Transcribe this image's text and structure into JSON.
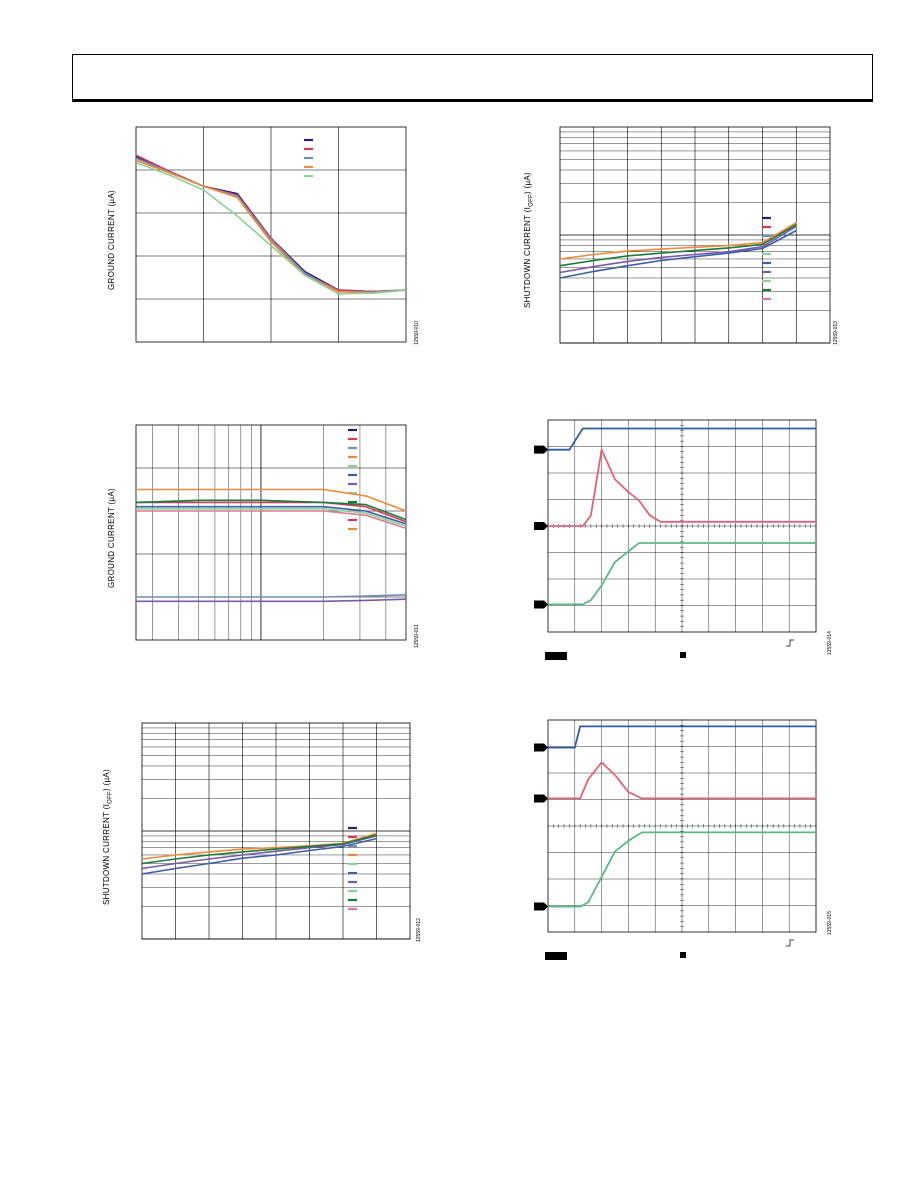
{
  "page": {
    "figures": [
      {
        "id": "fig10",
        "ylabel": "GROUND CURRENT (µA)",
        "figure_id": "12559-010"
      },
      {
        "id": "fig11",
        "ylabel": "GROUND CURRENT (µA)",
        "figure_id": "12559-011"
      },
      {
        "id": "fig12",
        "ylabel": "SHUTDOWN CURRENT (I",
        "ylabel_sub": "OFF",
        "ylabel_end": ") (µA)",
        "figure_id": "12559-012"
      },
      {
        "id": "fig13",
        "ylabel": "SHUTDOWN CURRENT (I",
        "ylabel_sub": "OFF",
        "ylabel_end": ") (µA)",
        "figure_id": "12559-013"
      },
      {
        "id": "fig14",
        "figure_id": "12559-014"
      },
      {
        "id": "fig15",
        "figure_id": "12559-015"
      }
    ]
  },
  "colors": {
    "navy": "#2d1b6b",
    "red": "#d43a5a",
    "steel": "#6f8fb4",
    "orange": "#f08a3c",
    "ltgreen": "#8fcf9a",
    "blue": "#3b5fa8",
    "purple": "#7a5ba8",
    "green": "#1e7a3a",
    "pink": "#e07a90",
    "scope_blue": "#2f5ea8",
    "scope_pink": "#e0637d",
    "scope_green": "#5bb888"
  },
  "chart_data": [
    {
      "id": "fig10",
      "type": "line",
      "ylabel": "GROUND CURRENT (µA)",
      "grid": true,
      "legend_placement": "top-right",
      "x": [
        0,
        0.5,
        1,
        1.5,
        2,
        2.5,
        3,
        3.5,
        4
      ],
      "series": [
        {
          "color": "navy",
          "values": [
            3.0,
            2.8,
            2.6,
            2.5,
            1.9,
            1.45,
            1.2,
            1.18,
            1.2
          ]
        },
        {
          "color": "red",
          "values": [
            3.02,
            2.8,
            2.6,
            2.48,
            1.9,
            1.42,
            1.2,
            1.18,
            1.2
          ]
        },
        {
          "color": "steel",
          "values": [
            2.98,
            2.79,
            2.6,
            2.47,
            1.88,
            1.43,
            1.18,
            1.17,
            1.2
          ]
        },
        {
          "color": "orange",
          "values": [
            2.95,
            2.78,
            2.6,
            2.45,
            1.85,
            1.4,
            1.18,
            1.16,
            1.2
          ]
        },
        {
          "color": "ltgreen",
          "values": [
            2.92,
            2.75,
            2.55,
            2.2,
            1.8,
            1.4,
            1.15,
            1.16,
            1.2
          ]
        }
      ]
    },
    {
      "id": "fig11",
      "type": "line",
      "ylabel": "GROUND CURRENT (µA)",
      "grid": true,
      "x_scale": "log",
      "legend_placement": "top-right",
      "x": [
        0.25,
        0.5,
        1,
        2,
        3.2,
        5
      ],
      "series": [
        {
          "color": "orange",
          "values": [
            3.5,
            3.5,
            3.5,
            3.5,
            3.35,
            3.0
          ]
        },
        {
          "color": "red",
          "values": [
            3.2,
            3.2,
            3.2,
            3.2,
            3.1,
            2.75
          ]
        },
        {
          "color": "green",
          "values": [
            3.2,
            3.25,
            3.25,
            3.2,
            3.15,
            2.8
          ]
        },
        {
          "color": "blue",
          "values": [
            3.1,
            3.1,
            3.1,
            3.1,
            3.0,
            2.7
          ]
        },
        {
          "color": "ltgreen",
          "values": [
            3.05,
            3.05,
            3.05,
            3.05,
            2.95,
            2.65
          ]
        },
        {
          "color": "pink",
          "values": [
            3.0,
            3.0,
            3.0,
            3.0,
            2.9,
            2.6
          ]
        },
        {
          "color": "steel",
          "values": [
            1.0,
            1.0,
            1.0,
            1.0,
            1.02,
            1.05
          ]
        },
        {
          "color": "purple",
          "values": [
            0.9,
            0.9,
            0.9,
            0.9,
            0.92,
            0.95
          ]
        }
      ]
    },
    {
      "id": "fig12",
      "type": "line",
      "ylabel": "SHUTDOWN CURRENT (IOFF) (µA)",
      "grid": true,
      "y_scale": "log",
      "legend_placement": "bottom-right",
      "x": [
        0,
        0.5,
        1,
        1.5,
        2,
        2.5,
        3,
        3.5
      ],
      "series": [
        {
          "color": "blue",
          "values": [
            0.004,
            0.0045,
            0.005,
            0.0056,
            0.006,
            0.0066,
            0.0072,
            0.0085
          ]
        },
        {
          "color": "orange",
          "values": [
            0.0055,
            0.006,
            0.0064,
            0.0068,
            0.007,
            0.0073,
            0.0077,
            0.0095
          ]
        },
        {
          "color": "purple",
          "values": [
            0.0045,
            0.005,
            0.0055,
            0.006,
            0.0065,
            0.007,
            0.0075,
            0.009
          ]
        },
        {
          "color": "green",
          "values": [
            0.005,
            0.0055,
            0.006,
            0.0064,
            0.0068,
            0.0072,
            0.0076,
            0.0092
          ]
        }
      ]
    },
    {
      "id": "fig13",
      "type": "line",
      "ylabel": "SHUTDOWN CURRENT (IOFF) (µA)",
      "grid": true,
      "y_scale": "log",
      "legend_placement": "bottom-right",
      "x": [
        0,
        0.5,
        1,
        1.5,
        2,
        2.5,
        3,
        3.5
      ],
      "series": [
        {
          "color": "blue",
          "values": [
            0.004,
            0.0046,
            0.0052,
            0.0058,
            0.0063,
            0.0068,
            0.0075,
            0.011
          ]
        },
        {
          "color": "orange",
          "values": [
            0.006,
            0.0066,
            0.0071,
            0.0074,
            0.0077,
            0.008,
            0.0085,
            0.013
          ]
        },
        {
          "color": "purple",
          "values": [
            0.0045,
            0.0051,
            0.0057,
            0.0062,
            0.0066,
            0.007,
            0.0078,
            0.012
          ]
        },
        {
          "color": "green",
          "values": [
            0.0052,
            0.0058,
            0.0064,
            0.0068,
            0.0072,
            0.0076,
            0.0082,
            0.0125
          ]
        }
      ]
    },
    {
      "id": "fig14",
      "type": "line",
      "grid": true,
      "x": [
        0,
        0.08,
        0.13,
        0.16,
        0.2,
        0.25,
        0.3,
        0.34,
        0.38,
        0.42,
        0.45,
        0.5,
        0.6,
        0.8,
        1
      ],
      "series": [
        {
          "color": "scope_blue",
          "values": [
            0.86,
            0.86,
            0.96,
            0.96,
            0.96,
            0.96,
            0.96,
            0.96,
            0.96,
            0.96,
            0.96,
            0.96,
            0.96,
            0.96,
            0.96
          ]
        },
        {
          "color": "scope_pink",
          "values": [
            0.5,
            0.5,
            0.5,
            0.55,
            0.86,
            0.72,
            0.66,
            0.62,
            0.55,
            0.52,
            0.52,
            0.52,
            0.52,
            0.52,
            0.52
          ]
        },
        {
          "color": "scope_green",
          "values": [
            0.13,
            0.13,
            0.13,
            0.15,
            0.22,
            0.33,
            0.38,
            0.42,
            0.42,
            0.42,
            0.42,
            0.42,
            0.42,
            0.42,
            0.42
          ]
        }
      ]
    },
    {
      "id": "fig15",
      "type": "line",
      "grid": true,
      "x": [
        0,
        0.1,
        0.12,
        0.15,
        0.2,
        0.25,
        0.3,
        0.35,
        0.4,
        0.45,
        0.5,
        0.6,
        0.8,
        1
      ],
      "series": [
        {
          "color": "scope_blue",
          "values": [
            0.87,
            0.87,
            0.97,
            0.97,
            0.97,
            0.97,
            0.97,
            0.97,
            0.97,
            0.97,
            0.97,
            0.97,
            0.97,
            0.97
          ]
        },
        {
          "color": "scope_pink",
          "values": [
            0.63,
            0.63,
            0.63,
            0.72,
            0.8,
            0.74,
            0.66,
            0.63,
            0.63,
            0.63,
            0.63,
            0.63,
            0.63,
            0.63
          ]
        },
        {
          "color": "scope_green",
          "values": [
            0.12,
            0.12,
            0.12,
            0.14,
            0.26,
            0.38,
            0.43,
            0.47,
            0.47,
            0.47,
            0.47,
            0.47,
            0.47,
            0.47
          ]
        }
      ]
    }
  ]
}
